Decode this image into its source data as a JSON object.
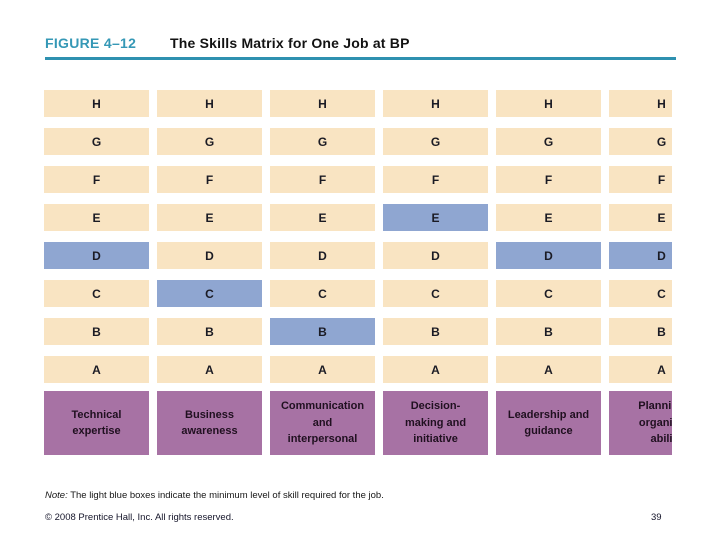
{
  "slide": {
    "figure_label": "FIGURE 4–12",
    "title": "The Skills Matrix for One Job at BP",
    "note_prefix": "Note:",
    "note_text": "The light blue boxes indicate the minimum level of skill required for the job.",
    "copyright": "© 2008 Prentice Hall, Inc. All rights reserved.",
    "slide_number": "39",
    "accent_color": "#2e91b0"
  },
  "matrix": {
    "levels": [
      "H",
      "G",
      "F",
      "E",
      "D",
      "C",
      "B",
      "A"
    ],
    "colors": {
      "cell_bg": "#f9e4c2",
      "highlight_bg": "#8fa6d1",
      "label_bg": "#a772a4"
    },
    "columns": [
      {
        "name": "technical-expertise",
        "label_lines": [
          "Technical",
          "expertise"
        ],
        "highlight": "D"
      },
      {
        "name": "business-awareness",
        "label_lines": [
          "Business",
          "awareness"
        ],
        "highlight": "C"
      },
      {
        "name": "communication-and-interpersonal",
        "label_lines": [
          "Communication",
          "and",
          "interpersonal"
        ],
        "highlight": "B"
      },
      {
        "name": "decision-making-and-initiative",
        "label_lines": [
          "Decision-",
          "making and",
          "initiative"
        ],
        "highlight": "E"
      },
      {
        "name": "leadership-and-guidance",
        "label_lines": [
          "Leadership and",
          "guidance"
        ],
        "highlight": "D"
      },
      {
        "name": "planning-organizational-ability",
        "label_lines": [
          "Planning",
          "organiza",
          "abili"
        ],
        "highlight": "D",
        "clipped": true
      }
    ]
  }
}
